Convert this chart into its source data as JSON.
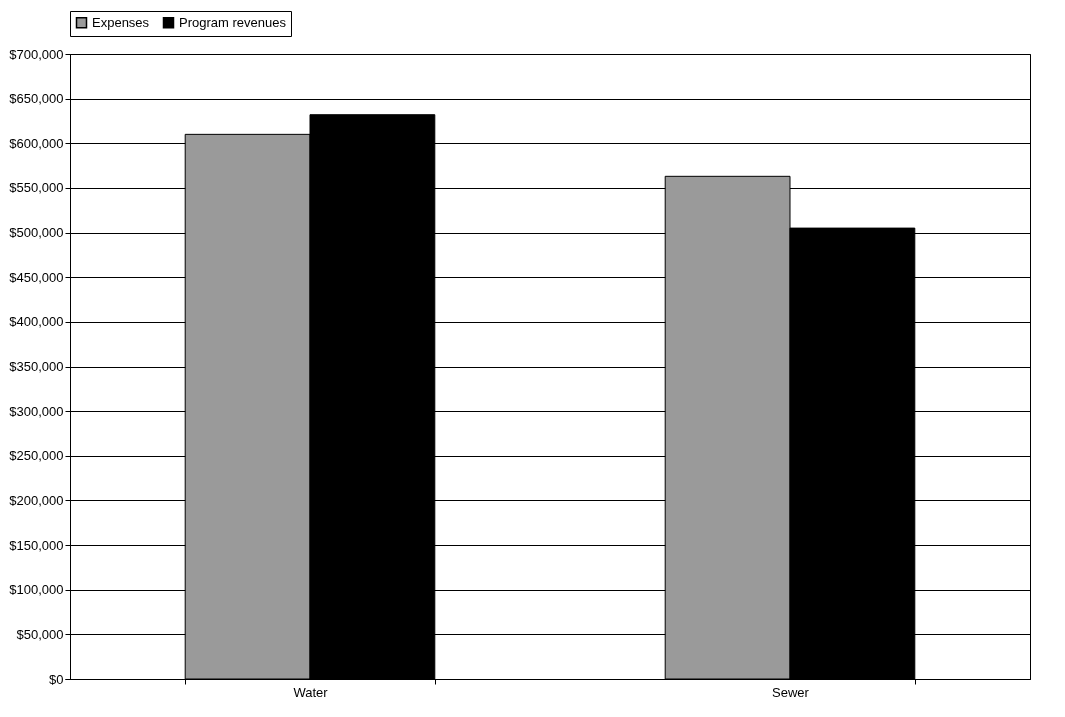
{
  "chart_data": {
    "type": "bar",
    "categories": [
      "Water",
      "Sewer"
    ],
    "series": [
      {
        "name": "Expenses",
        "color": "#9a9a9a",
        "values": [
          610000,
          563000
        ]
      },
      {
        "name": "Program revenues",
        "color": "#000000",
        "values": [
          632000,
          505000
        ]
      }
    ],
    "ylim": [
      0,
      700000
    ],
    "yticks": [
      {
        "value": 0,
        "label": "$0"
      },
      {
        "value": 50000,
        "label": "$50,000"
      },
      {
        "value": 100000,
        "label": "$100,000"
      },
      {
        "value": 150000,
        "label": "$150,000"
      },
      {
        "value": 200000,
        "label": "$200,000"
      },
      {
        "value": 250000,
        "label": "$250,000"
      },
      {
        "value": 300000,
        "label": "$300,000"
      },
      {
        "value": 350000,
        "label": "$350,000"
      },
      {
        "value": 400000,
        "label": "$400,000"
      },
      {
        "value": 450000,
        "label": "$450,000"
      },
      {
        "value": 500000,
        "label": "$500,000"
      },
      {
        "value": 550000,
        "label": "$550,000"
      },
      {
        "value": 600000,
        "label": "$600,000"
      },
      {
        "value": 650000,
        "label": "$650,000"
      },
      {
        "value": 700000,
        "label": "$700,000"
      }
    ],
    "grid": "y",
    "legend": "top"
  }
}
